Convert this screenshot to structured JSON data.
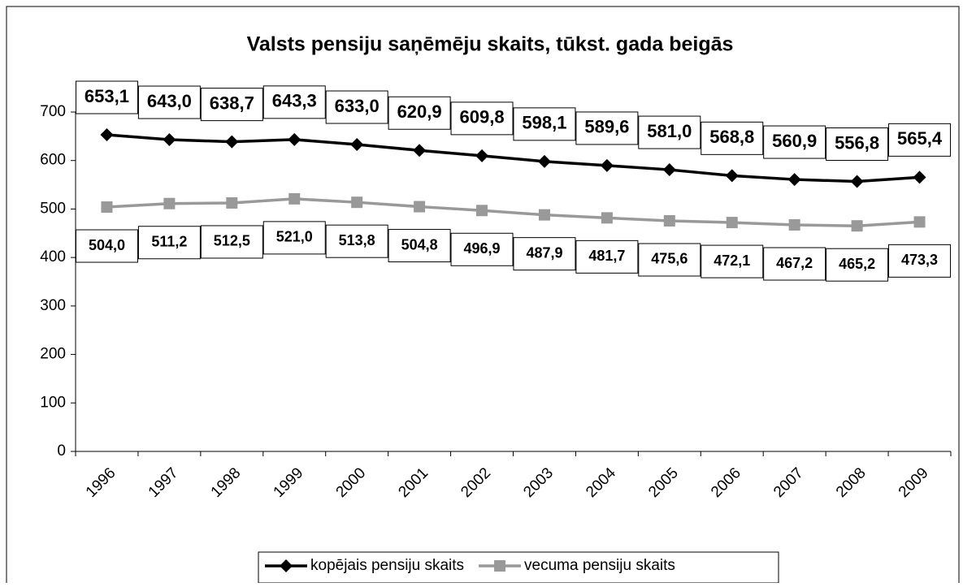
{
  "chart_data": {
    "type": "line",
    "title": "Valsts pensiju saņēmēju skaits, tūkst. gada beigās",
    "categories": [
      "1996",
      "1997",
      "1998",
      "1999",
      "2000",
      "2001",
      "2002",
      "2003",
      "2004",
      "2005",
      "2006",
      "2007",
      "2008",
      "2009"
    ],
    "series": [
      {
        "name": "kopējais pensiju skaits",
        "color": "#000000",
        "marker": "diamond",
        "values": [
          653.1,
          643.0,
          638.7,
          643.3,
          633.0,
          620.9,
          609.8,
          598.1,
          589.6,
          581.0,
          568.8,
          560.9,
          556.8,
          565.4
        ],
        "value_labels": [
          "653,1",
          "643,0",
          "638,7",
          "643,3",
          "633,0",
          "620,9",
          "609,8",
          "598,1",
          "589,6",
          "581,0",
          "568,8",
          "560,9",
          "556,8",
          "565,4"
        ]
      },
      {
        "name": "vecuma pensiju skaits",
        "color": "#999999",
        "marker": "square",
        "values": [
          504.0,
          511.2,
          512.5,
          521.0,
          513.8,
          504.8,
          496.9,
          487.9,
          481.7,
          475.6,
          472.1,
          467.2,
          465.2,
          473.3
        ],
        "value_labels": [
          "504,0",
          "511,2",
          "512,5",
          "521,0",
          "513,8",
          "504,8",
          "496,9",
          "487,9",
          "481,7",
          "475,6",
          "472,1",
          "467,2",
          "465,2",
          "473,3"
        ]
      }
    ],
    "ylim": [
      0,
      700
    ],
    "yticks": [
      0,
      100,
      200,
      300,
      400,
      500,
      600,
      700
    ],
    "legend": "bottom"
  }
}
